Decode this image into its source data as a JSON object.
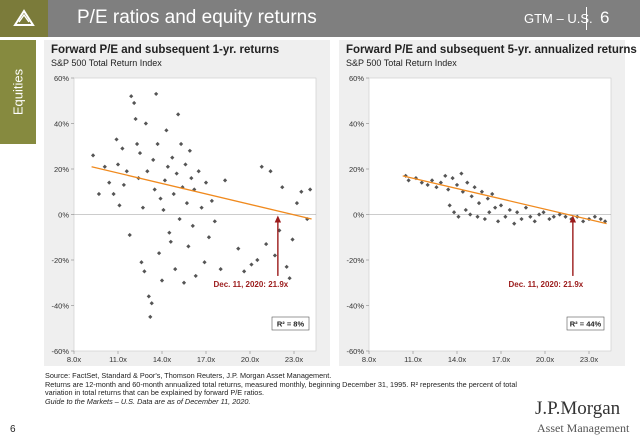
{
  "header": {
    "title": "P/E ratios and equity returns",
    "gtm_label": "GTM – U.S.",
    "page_number": "6",
    "background_color": "#7f7f7f",
    "logo_color": "#7b7b3a"
  },
  "sidebar": {
    "tab_label": "Equities",
    "color": "#868a3f"
  },
  "footer": {
    "notes": [
      "Source: FactSet, Standard & Poor's, Thomson Reuters, J.P. Morgan Asset Management.",
      "Returns are 12-month and 60-month annualized total returns, measured monthly, beginning December 31, 1995. R² represents the percent of total",
      "variation in total returns that can be explained by forward P/E ratios.",
      "Guide to the Markets – U.S. Data are as of December 11, 2020."
    ],
    "page_number": "6",
    "brand": "J.P.Morgan",
    "brand_sub": "Asset Management"
  },
  "colors": {
    "points": "#555555",
    "trend": "#f08a1e",
    "annotation": "#9b1b1b",
    "panel": "#efefef"
  },
  "chart_data": [
    {
      "type": "scatter",
      "title": "Forward P/E and subsequent 1-yr. returns",
      "subtitle": "S&P 500 Total Return Index",
      "xlabel": "",
      "ylabel": "",
      "xlim": [
        8,
        24.5
      ],
      "ylim": [
        -60,
        60
      ],
      "xticks": [
        "8.0x",
        "11.0x",
        "14.0x",
        "17.0x",
        "20.0x",
        "23.0x"
      ],
      "xtick_values": [
        8,
        11,
        14,
        17,
        20,
        23
      ],
      "yticks": [
        "60%",
        "40%",
        "20%",
        "0%",
        "-20%",
        "-40%",
        "-60%"
      ],
      "ytick_values": [
        60,
        40,
        20,
        0,
        -20,
        -40,
        -60
      ],
      "trendline": [
        [
          9.2,
          21
        ],
        [
          24.2,
          -2
        ]
      ],
      "annotation": {
        "label": "Dec. 11, 2020: 21.9x",
        "x": 21.9,
        "y_marker": 0
      },
      "r2_label": "R² = 8%",
      "points": [
        [
          9.3,
          26
        ],
        [
          9.7,
          9
        ],
        [
          10.1,
          21
        ],
        [
          10.4,
          14
        ],
        [
          10.7,
          9
        ],
        [
          10.9,
          33
        ],
        [
          11.0,
          22
        ],
        [
          11.1,
          4
        ],
        [
          11.3,
          29
        ],
        [
          11.4,
          13
        ],
        [
          11.6,
          19
        ],
        [
          11.8,
          -9
        ],
        [
          11.9,
          52
        ],
        [
          12.1,
          49
        ],
        [
          12.2,
          42
        ],
        [
          12.3,
          31
        ],
        [
          12.4,
          16
        ],
        [
          12.5,
          27
        ],
        [
          12.6,
          -21
        ],
        [
          12.7,
          3
        ],
        [
          12.8,
          -25
        ],
        [
          12.9,
          40
        ],
        [
          13.0,
          19
        ],
        [
          13.1,
          -36
        ],
        [
          13.2,
          -45
        ],
        [
          13.3,
          -39
        ],
        [
          13.4,
          24
        ],
        [
          13.5,
          11
        ],
        [
          13.6,
          53
        ],
        [
          13.7,
          31
        ],
        [
          13.8,
          -17
        ],
        [
          13.9,
          7
        ],
        [
          14.0,
          -29
        ],
        [
          14.1,
          2
        ],
        [
          14.2,
          15
        ],
        [
          14.3,
          37
        ],
        [
          14.4,
          21
        ],
        [
          14.5,
          -8
        ],
        [
          14.6,
          -12
        ],
        [
          14.7,
          25
        ],
        [
          14.8,
          9
        ],
        [
          14.9,
          -24
        ],
        [
          15.0,
          18
        ],
        [
          15.1,
          44
        ],
        [
          15.2,
          -2
        ],
        [
          15.3,
          31
        ],
        [
          15.4,
          12
        ],
        [
          15.5,
          -30
        ],
        [
          15.6,
          22
        ],
        [
          15.7,
          5
        ],
        [
          15.8,
          -14
        ],
        [
          15.9,
          28
        ],
        [
          16.0,
          16
        ],
        [
          16.1,
          -5
        ],
        [
          16.2,
          11
        ],
        [
          16.3,
          -27
        ],
        [
          16.5,
          19
        ],
        [
          16.7,
          3
        ],
        [
          16.9,
          -21
        ],
        [
          17.0,
          14
        ],
        [
          17.2,
          -10
        ],
        [
          17.4,
          6
        ],
        [
          17.6,
          -3
        ],
        [
          18.0,
          -24
        ],
        [
          18.3,
          15
        ],
        [
          19.2,
          -15
        ],
        [
          19.6,
          -25
        ],
        [
          20.1,
          -22
        ],
        [
          20.5,
          -20
        ],
        [
          20.8,
          21
        ],
        [
          21.1,
          -13
        ],
        [
          21.4,
          19
        ],
        [
          21.7,
          -18
        ],
        [
          22.0,
          -7
        ],
        [
          22.2,
          12
        ],
        [
          22.5,
          -23
        ],
        [
          22.7,
          -28
        ],
        [
          22.9,
          -11
        ],
        [
          23.2,
          5
        ],
        [
          23.5,
          10
        ],
        [
          23.9,
          -2
        ],
        [
          24.1,
          11
        ]
      ]
    },
    {
      "type": "scatter",
      "title": "Forward P/E and subsequent 5-yr. annualized returns",
      "subtitle": "S&P 500 Total Return Index",
      "xlabel": "",
      "ylabel": "",
      "xlim": [
        8,
        24.5
      ],
      "ylim": [
        -60,
        60
      ],
      "xticks": [
        "8.0x",
        "11.0x",
        "14.0x",
        "17.0x",
        "20.0x",
        "23.0x"
      ],
      "xtick_values": [
        8,
        11,
        14,
        17,
        20,
        23
      ],
      "yticks": [
        "60%",
        "40%",
        "20%",
        "0%",
        "-20%",
        "-40%",
        "-60%"
      ],
      "ytick_values": [
        60,
        40,
        20,
        0,
        -20,
        -40,
        -60
      ],
      "trendline": [
        [
          10.3,
          17
        ],
        [
          24.2,
          -4
        ]
      ],
      "annotation": {
        "label": "Dec. 11, 2020: 21.9x",
        "x": 21.9,
        "y_marker": 0
      },
      "r2_label": "R² = 44%",
      "points": [
        [
          10.5,
          17
        ],
        [
          10.7,
          15
        ],
        [
          11.2,
          16
        ],
        [
          11.6,
          14
        ],
        [
          12.0,
          13
        ],
        [
          12.3,
          15
        ],
        [
          12.6,
          12
        ],
        [
          12.9,
          14
        ],
        [
          13.2,
          17
        ],
        [
          13.4,
          11
        ],
        [
          13.5,
          4
        ],
        [
          13.7,
          16
        ],
        [
          13.8,
          1
        ],
        [
          14.0,
          13
        ],
        [
          14.1,
          -1
        ],
        [
          14.3,
          18
        ],
        [
          14.4,
          10
        ],
        [
          14.6,
          2
        ],
        [
          14.7,
          14
        ],
        [
          14.9,
          0
        ],
        [
          15.0,
          8
        ],
        [
          15.2,
          12
        ],
        [
          15.4,
          -1
        ],
        [
          15.5,
          5
        ],
        [
          15.7,
          10
        ],
        [
          15.9,
          -2
        ],
        [
          16.1,
          7
        ],
        [
          16.2,
          1
        ],
        [
          16.4,
          9
        ],
        [
          16.6,
          3
        ],
        [
          16.8,
          -3
        ],
        [
          17.0,
          4
        ],
        [
          17.3,
          -1
        ],
        [
          17.6,
          2
        ],
        [
          17.9,
          -4
        ],
        [
          18.1,
          1
        ],
        [
          18.4,
          -2
        ],
        [
          18.7,
          3
        ],
        [
          19.0,
          -1
        ],
        [
          19.3,
          -3
        ],
        [
          19.6,
          0
        ],
        [
          19.9,
          1
        ],
        [
          20.3,
          -2
        ],
        [
          20.6,
          -1
        ],
        [
          21.0,
          0
        ],
        [
          21.4,
          -1
        ],
        [
          21.8,
          -2
        ],
        [
          22.2,
          -1
        ],
        [
          22.6,
          -3
        ],
        [
          23.0,
          -2
        ],
        [
          23.4,
          -1
        ],
        [
          23.8,
          -2
        ],
        [
          24.1,
          -3
        ]
      ]
    }
  ]
}
